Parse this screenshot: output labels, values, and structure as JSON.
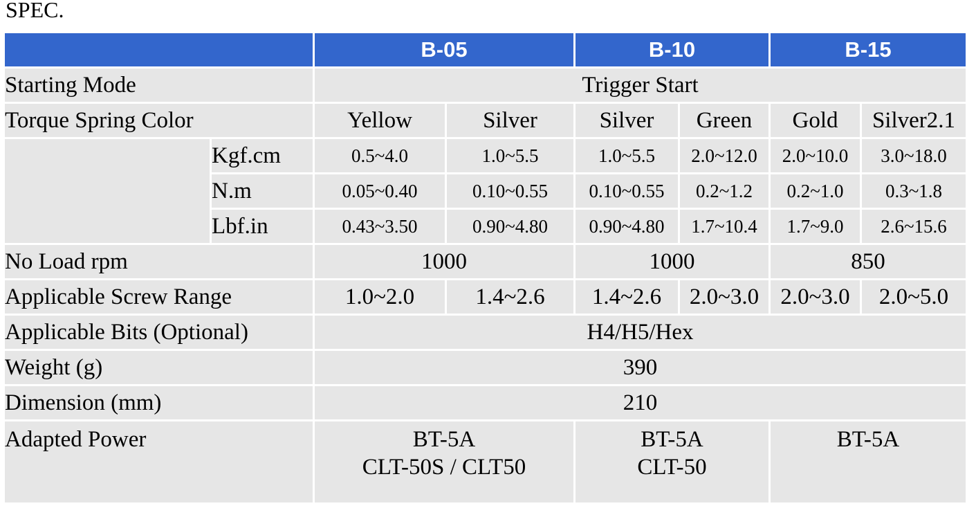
{
  "title": "SPEC.",
  "models": [
    "B-05",
    "B-10",
    "B-15"
  ],
  "rows": {
    "starting_mode": {
      "label": "Starting Mode",
      "value": "Trigger Start"
    },
    "torque_spring_color": {
      "label": "Torque Spring Color",
      "values": [
        "Yellow",
        "Silver",
        "Silver",
        "Green",
        "Gold",
        "Silver2.1"
      ]
    },
    "torque": [
      {
        "unit": "Kgf.cm",
        "values": [
          "0.5~4.0",
          "1.0~5.5",
          "1.0~5.5",
          "2.0~12.0",
          "2.0~10.0",
          "3.0~18.0"
        ]
      },
      {
        "unit": "N.m",
        "values": [
          "0.05~0.40",
          "0.10~0.55",
          "0.10~0.55",
          "0.2~1.2",
          "0.2~1.0",
          "0.3~1.8"
        ]
      },
      {
        "unit": "Lbf.in",
        "values": [
          "0.43~3.50",
          "0.90~4.80",
          "0.90~4.80",
          "1.7~10.4",
          "1.7~9.0",
          "2.6~15.6"
        ]
      }
    ],
    "no_load_rpm": {
      "label": "No Load rpm",
      "values": [
        "1000",
        "1000",
        "850"
      ]
    },
    "screw_range": {
      "label": "Applicable Screw Range",
      "values": [
        "1.0~2.0",
        "1.4~2.6",
        "1.4~2.6",
        "2.0~3.0",
        "2.0~3.0",
        "2.0~5.0"
      ]
    },
    "bits": {
      "label": "Applicable Bits (Optional)",
      "value": "H4/H5/Hex"
    },
    "weight": {
      "label": "Weight (g)",
      "value": "390"
    },
    "dimension": {
      "label": "Dimension (mm)",
      "value": "210"
    },
    "power": {
      "label": "Adapted Power",
      "values": [
        {
          "line1": "BT-5A",
          "line2": "CLT-50S / CLT50"
        },
        {
          "line1": "BT-5A",
          "line2": "CLT-50"
        },
        {
          "line1": "BT-5A",
          "line2": ""
        }
      ]
    }
  }
}
